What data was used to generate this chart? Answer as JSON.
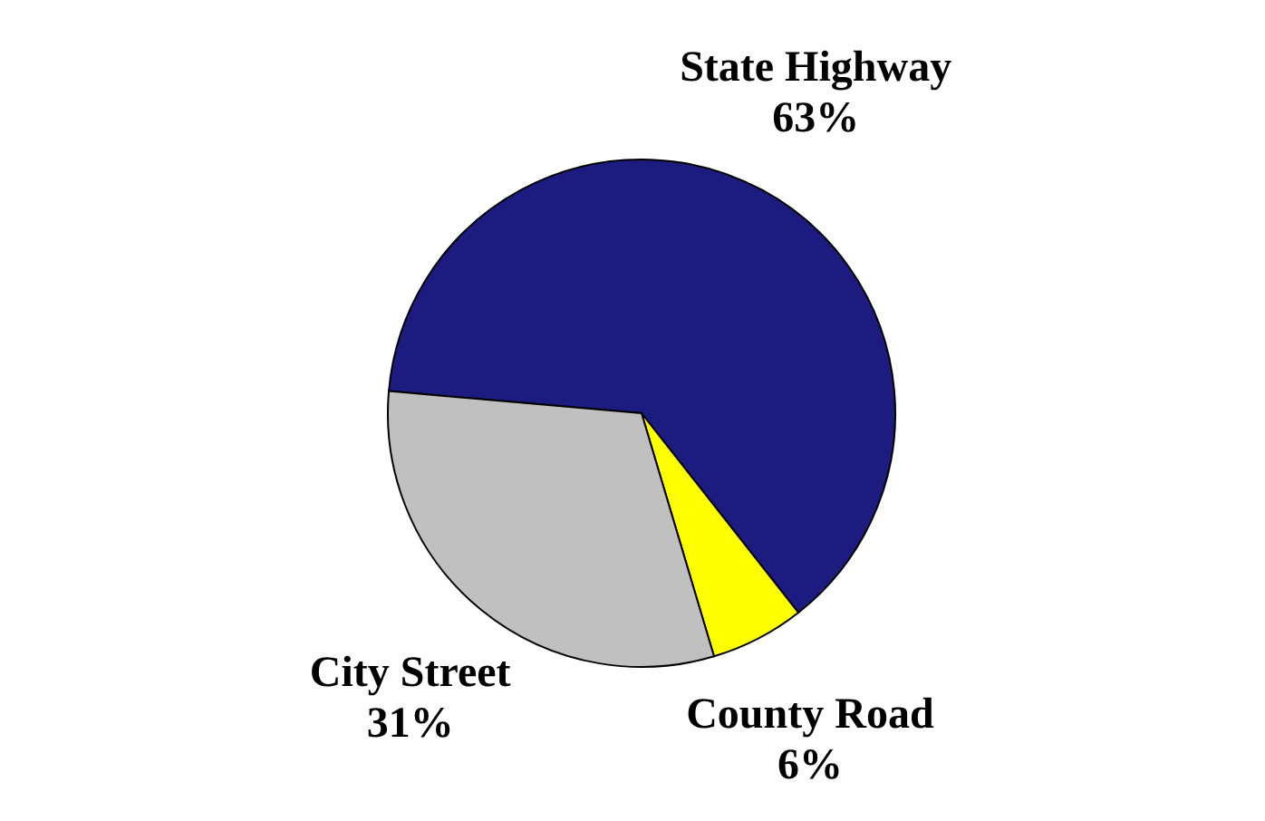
{
  "chart_data": {
    "type": "pie",
    "categories": [
      "State Highway",
      "County Road",
      "City Street"
    ],
    "values": [
      63,
      6,
      31
    ],
    "colors": [
      "#1c1c80",
      "#ffff00",
      "#c0c0c0"
    ],
    "value_labels": [
      "63%",
      "6%",
      "31%"
    ],
    "legend": false
  }
}
